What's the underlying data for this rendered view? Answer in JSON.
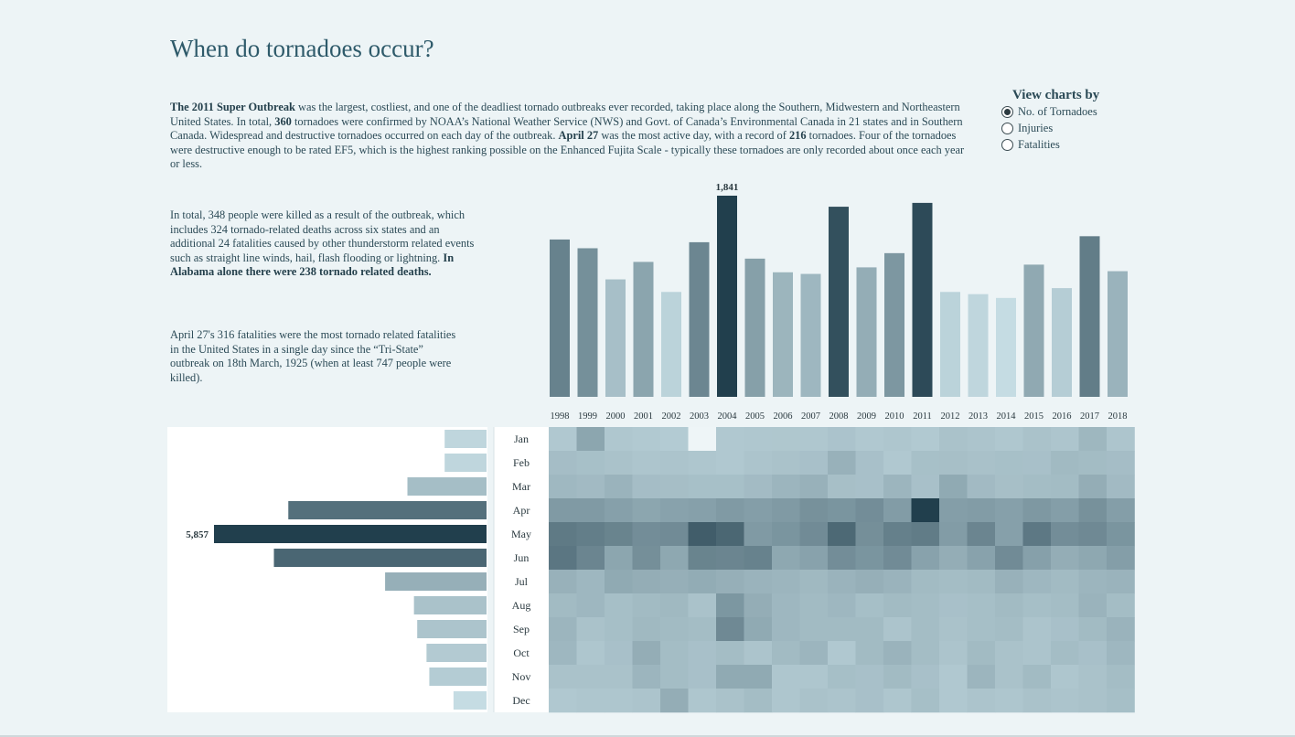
{
  "title": "When do tornadoes occur?",
  "intro": {
    "b1": "The 2011 Super Outbreak",
    "t1": " was the largest, costliest, and one of the deadliest tornado outbreaks ever recorded, taking place along the Southern, Midwestern and Northeastern United States. In total, ",
    "b2": "360",
    "t2": " tornadoes were confirmed by NOAA’s National Weather Service (NWS) and Govt. of Canada’s Environmental Canada in 21 states and in Southern Canada. Widespread and destructive tornadoes occurred on each day of the outbreak. ",
    "b3": "April 27",
    "t3": " was the most active day, with a record of ",
    "b4": "216",
    "t4": " tornadoes. Four of the tornadoes were destructive enough to be rated EF5, which is the highest ranking possible on the Enhanced Fujita Scale - typically these tornadoes are only recorded about once each year or less."
  },
  "deaths": {
    "t1": "In total, 348 people were killed as a result of the outbreak, which includes 324 tornado-related deaths across six states and an additional 24 fatalities caused by other thunderstorm related events such as straight line winds, hail, flash flooding or lightning. ",
    "b1": "In Alabama alone there were 238 tornado related deaths."
  },
  "record": {
    "t1": "April 27's 316 fatalities were the most tornado related fatalities in the United States in a single day since the “Tri-State” outbreak on 18th March, 1925 (when at least 747 people were killed)."
  },
  "view_by": {
    "title": "View charts by",
    "options": [
      "No. of Tornadoes",
      "Injuries",
      "Fatalities"
    ],
    "selected": 0
  },
  "colors": {
    "dark": "#213f4d",
    "light": "#c5dce3",
    "cell_min": "#eef5f7",
    "background": "#edf4f6"
  },
  "chart_data": [
    {
      "type": "bar",
      "categories": [
        "1998",
        "1999",
        "2000",
        "2001",
        "2002",
        "2003",
        "2004",
        "2005",
        "2006",
        "2007",
        "2008",
        "2009",
        "2010",
        "2011",
        "2012",
        "2013",
        "2014",
        "2015",
        "2016",
        "2017",
        "2018"
      ],
      "values": [
        1440,
        1360,
        1075,
        1235,
        960,
        1415,
        1841,
        1265,
        1140,
        1125,
        1740,
        1185,
        1315,
        1775,
        960,
        940,
        905,
        1210,
        995,
        1470,
        1150
      ],
      "labels": {
        "6": "1,841"
      },
      "ylim": [
        0,
        1900
      ],
      "grid": false,
      "xlabel": "",
      "ylabel": ""
    },
    {
      "type": "bar",
      "orientation": "horizontal",
      "categories": [
        "Jan",
        "Feb",
        "Mar",
        "Apr",
        "May",
        "Jun",
        "Jul",
        "Aug",
        "Sep",
        "Oct",
        "Nov",
        "Dec"
      ],
      "values": [
        900,
        900,
        1700,
        4260,
        5857,
        4570,
        2180,
        1560,
        1490,
        1290,
        1230,
        710
      ],
      "labels": {
        "4": "5,857"
      },
      "xlim": [
        0,
        5857
      ],
      "grid": false
    },
    {
      "type": "heatmap",
      "x": [
        "1998",
        "1999",
        "2000",
        "2001",
        "2002",
        "2003",
        "2004",
        "2005",
        "2006",
        "2007",
        "2008",
        "2009",
        "2010",
        "2011",
        "2012",
        "2013",
        "2014",
        "2015",
        "2016",
        "2017",
        "2018"
      ],
      "y": [
        "Jan",
        "Feb",
        "Mar",
        "Apr",
        "May",
        "Jun",
        "Jul",
        "Aug",
        "Sep",
        "Oct",
        "Nov",
        "Dec"
      ],
      "values": [
        [
          40,
          130,
          42,
          38,
          32,
          0,
          40,
          42,
          44,
          42,
          52,
          40,
          46,
          38,
          56,
          50,
          42,
          56,
          48,
          86,
          48
        ],
        [
          68,
          62,
          56,
          48,
          50,
          46,
          40,
          50,
          56,
          60,
          100,
          60,
          40,
          62,
          64,
          58,
          62,
          60,
          78,
          72,
          68
        ],
        [
          82,
          76,
          96,
          68,
          66,
          62,
          62,
          74,
          90,
          100,
          64,
          60,
          90,
          60,
          120,
          76,
          64,
          70,
          72,
          110,
          76
        ],
        [
          160,
          160,
          145,
          130,
          140,
          145,
          160,
          150,
          160,
          185,
          175,
          195,
          155,
          400,
          150,
          155,
          145,
          165,
          150,
          185,
          150
        ],
        [
          245,
          235,
          220,
          195,
          200,
          320,
          295,
          160,
          175,
          200,
          290,
          190,
          230,
          240,
          155,
          215,
          145,
          250,
          195,
          205,
          175
        ],
        [
          255,
          215,
          130,
          190,
          125,
          220,
          215,
          225,
          125,
          140,
          195,
          175,
          200,
          140,
          110,
          140,
          200,
          145,
          110,
          125,
          150
        ],
        [
          100,
          85,
          120,
          110,
          105,
          115,
          105,
          95,
          90,
          80,
          95,
          105,
          95,
          75,
          70,
          75,
          100,
          85,
          75,
          90,
          95
        ],
        [
          75,
          85,
          65,
          75,
          80,
          55,
          170,
          110,
          85,
          75,
          85,
          65,
          75,
          70,
          60,
          65,
          75,
          65,
          70,
          95,
          70
        ],
        [
          90,
          55,
          65,
          80,
          75,
          70,
          205,
          120,
          85,
          75,
          75,
          75,
          50,
          70,
          55,
          65,
          70,
          50,
          60,
          75,
          95
        ],
        [
          85,
          45,
          60,
          110,
          70,
          60,
          70,
          50,
          75,
          90,
          40,
          75,
          95,
          70,
          50,
          75,
          55,
          50,
          70,
          60,
          85
        ],
        [
          55,
          55,
          55,
          90,
          70,
          60,
          120,
          120,
          45,
          45,
          65,
          60,
          75,
          60,
          40,
          90,
          55,
          75,
          45,
          55,
          70
        ],
        [
          40,
          45,
          45,
          50,
          110,
          45,
          55,
          70,
          45,
          55,
          50,
          60,
          45,
          65,
          40,
          50,
          45,
          55,
          50,
          55,
          65
        ]
      ],
      "vmin": 0,
      "vmax": 400
    }
  ]
}
